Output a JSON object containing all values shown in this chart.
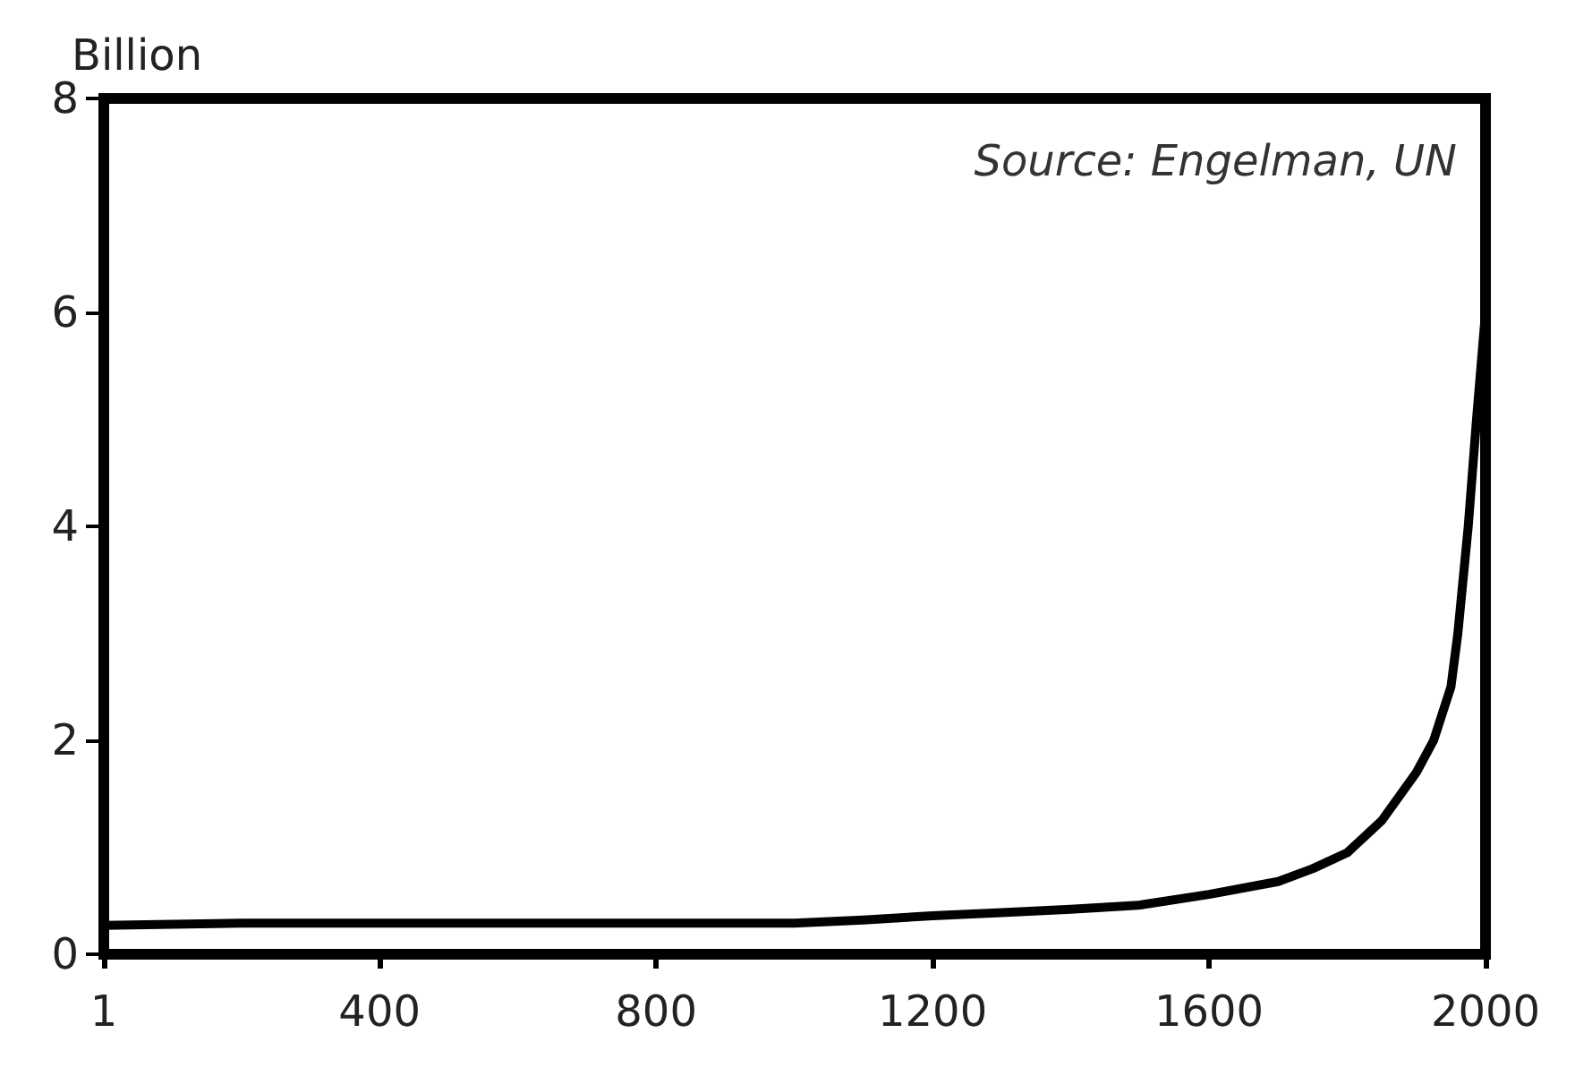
{
  "chart_data": {
    "type": "line",
    "ylabel": "Billion",
    "annotations": [
      "Source: Engelman, UN"
    ],
    "x": [
      1,
      200,
      1000,
      1100,
      1200,
      1300,
      1400,
      1500,
      1600,
      1700,
      1750,
      1800,
      1850,
      1900,
      1925,
      1950,
      1960,
      1975,
      1987,
      2000
    ],
    "series": [
      {
        "color": "#000000",
        "values": [
          0.27,
          0.29,
          0.29,
          0.32,
          0.36,
          0.39,
          0.42,
          0.46,
          0.56,
          0.68,
          0.8,
          0.95,
          1.25,
          1.7,
          2.0,
          2.5,
          3.0,
          4.0,
          5.0,
          6.0
        ]
      }
    ],
    "xlim": [
      1,
      2000
    ],
    "xticks": [
      1,
      400,
      800,
      1200,
      1600,
      2000
    ],
    "ylim": [
      0,
      8
    ],
    "yticks": [
      0,
      2,
      4,
      6,
      8
    ],
    "grid": false,
    "marker": "none",
    "line_style": "solid"
  }
}
